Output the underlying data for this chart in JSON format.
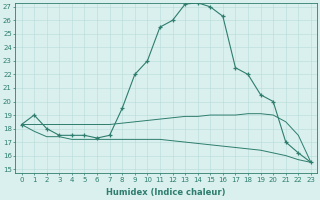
{
  "xlabel": "Humidex (Indice chaleur)",
  "hours": [
    0,
    1,
    2,
    3,
    4,
    5,
    6,
    7,
    8,
    9,
    10,
    11,
    12,
    13,
    14,
    15,
    16,
    17,
    18,
    19,
    20,
    21,
    22,
    23
  ],
  "humidex": [
    18.3,
    19.0,
    18.0,
    17.5,
    17.5,
    17.5,
    17.3,
    17.5,
    19.5,
    22.0,
    23.0,
    25.5,
    26.0,
    27.2,
    27.3,
    27.0,
    26.3,
    22.5,
    22.0,
    20.5,
    20.0,
    17.0,
    16.2,
    15.5
  ],
  "tmin": [
    18.3,
    17.8,
    17.4,
    17.4,
    17.2,
    17.2,
    17.2,
    17.2,
    17.2,
    17.2,
    17.2,
    17.2,
    17.1,
    17.0,
    16.9,
    16.8,
    16.7,
    16.6,
    16.5,
    16.4,
    16.2,
    16.0,
    15.7,
    15.5
  ],
  "tmax": [
    18.3,
    18.3,
    18.3,
    18.3,
    18.3,
    18.3,
    18.3,
    18.3,
    18.4,
    18.5,
    18.6,
    18.7,
    18.8,
    18.9,
    18.9,
    19.0,
    19.0,
    19.0,
    19.1,
    19.1,
    19.0,
    18.5,
    17.5,
    15.5
  ],
  "line_color": "#2e7d6e",
  "bg_color": "#d9f0ee",
  "grid_color": "#b8dbd8",
  "ylim_min": 15,
  "ylim_max": 27,
  "yticks": [
    15,
    16,
    17,
    18,
    19,
    20,
    21,
    22,
    23,
    24,
    25,
    26,
    27
  ],
  "tick_fontsize": 5.0,
  "xlabel_fontsize": 6.0
}
